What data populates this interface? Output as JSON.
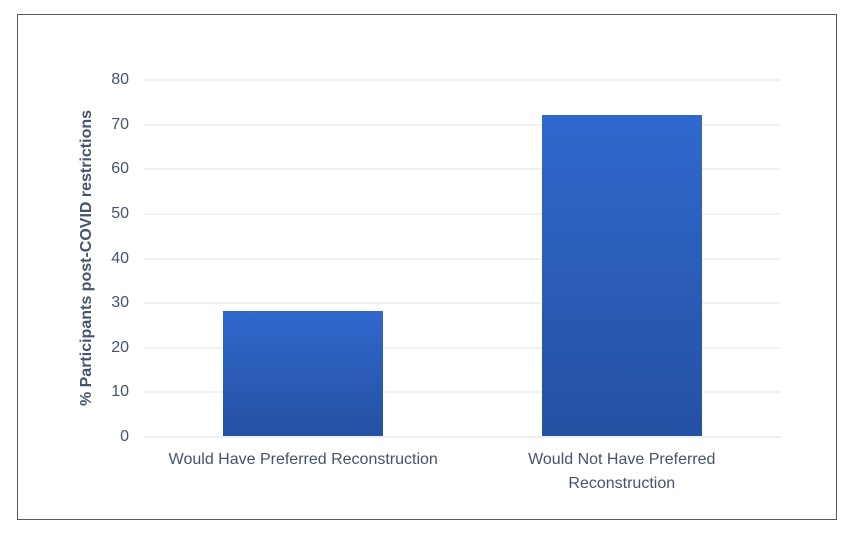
{
  "figure": {
    "background_color": "#FFFFFF",
    "frame_border_color": "#595959",
    "gridline_color": "#E2E6ED",
    "label_color": "#44546A"
  },
  "chart_data": {
    "type": "bar",
    "title": "",
    "xlabel": "",
    "ylabel": "% Participants post-COVID restrictions",
    "categories": [
      "Would Have Preferred Reconstruction",
      "Would Not Have Preferred Reconstruction"
    ],
    "values": [
      28,
      72
    ],
    "ylim": [
      0,
      80
    ],
    "yticks": [
      0,
      10,
      20,
      30,
      40,
      50,
      60,
      70,
      80
    ],
    "grid": true,
    "legend": false,
    "bar_gradient_top": "#3168CE",
    "bar_gradient_bottom": "#2451A2"
  }
}
